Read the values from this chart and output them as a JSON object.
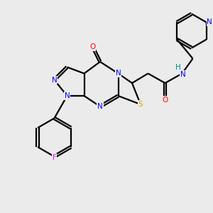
{
  "background_color": "#ebebeb",
  "bond_color": "#000000",
  "bond_width": 1.6,
  "dbo": 0.055,
  "colors": {
    "N": "#0000ff",
    "O": "#ff0000",
    "S": "#ccaa00",
    "F": "#ff00ff",
    "H": "#008b8b"
  },
  "fs": 7.5
}
